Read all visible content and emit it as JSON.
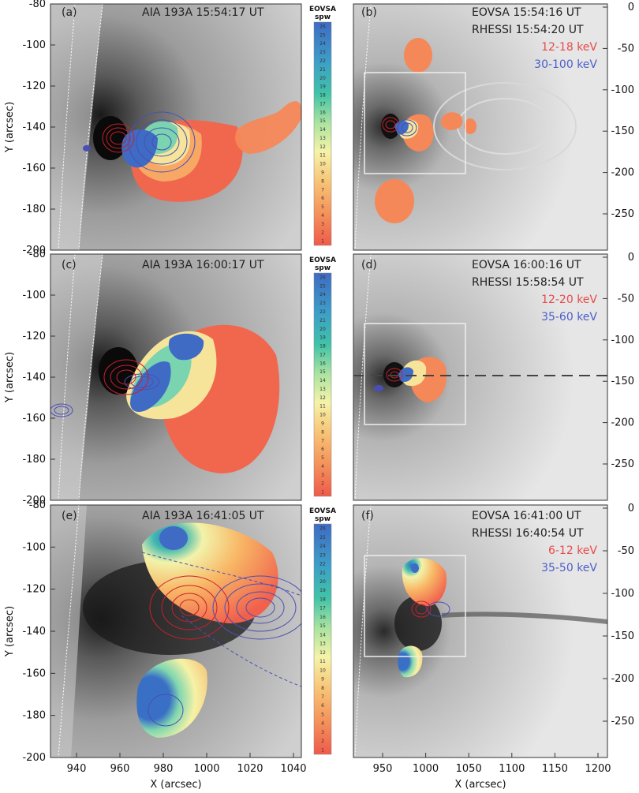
{
  "panels": [
    {
      "id": "a",
      "label": "(a)",
      "title": "AIA 193A  15:54:17 UT"
    },
    {
      "id": "b",
      "label": "(b)",
      "line1": "EOVSA      15:54:16 UT",
      "line2": "RHESSI     15:54:20 UT",
      "energy_red": "12-18 keV",
      "energy_blue": "30-100 keV"
    },
    {
      "id": "c",
      "label": "(c)",
      "title": "AIA 193A  16:00:17 UT"
    },
    {
      "id": "d",
      "label": "(d)",
      "line1": "EOVSA      16:00:16 UT",
      "line2": "RHESSI     15:58:54 UT",
      "energy_red": "12-20 keV",
      "energy_blue": "35-60 keV"
    },
    {
      "id": "e",
      "label": "(e)",
      "title": "AIA 193A  16:41:05 UT"
    },
    {
      "id": "f",
      "label": "(f)",
      "line1": "EOVSA      16:41:00 UT",
      "line2": "RHESSI     16:40:54 UT",
      "energy_red": "6-12 keV",
      "energy_blue": "35-50 keV"
    }
  ],
  "left_axes": {
    "ylabel": "Y (arcsec)",
    "xlabel": "X (arcsec)",
    "yticks": [
      "-80",
      "-100",
      "-120",
      "-140",
      "-160",
      "-180",
      "-200"
    ],
    "xticks": [
      "940",
      "960",
      "980",
      "1000",
      "1020",
      "1040"
    ]
  },
  "right_axes": {
    "xlabel": "X (arcsec)",
    "yticks": [
      "0",
      "-50",
      "-100",
      "-150",
      "-200",
      "-250"
    ],
    "xticks": [
      "950",
      "1000",
      "1050",
      "1100",
      "1150",
      "1200"
    ]
  },
  "colorbar": {
    "title1": "EOVSA",
    "title2": "spw",
    "labels": [
      "26",
      "25",
      "24",
      "23",
      "22",
      "21",
      "20",
      "19",
      "18",
      "17",
      "16",
      "15",
      "14",
      "13",
      "12",
      "11",
      "10",
      "9",
      "8",
      "7",
      "6",
      "5",
      "4",
      "3",
      "2",
      "1"
    ]
  },
  "colors": {
    "red_contour": "#c8202a",
    "blue_contour": "#4a4fb5",
    "energy_red": "#e84a4a",
    "energy_blue": "#4c5fc9"
  }
}
